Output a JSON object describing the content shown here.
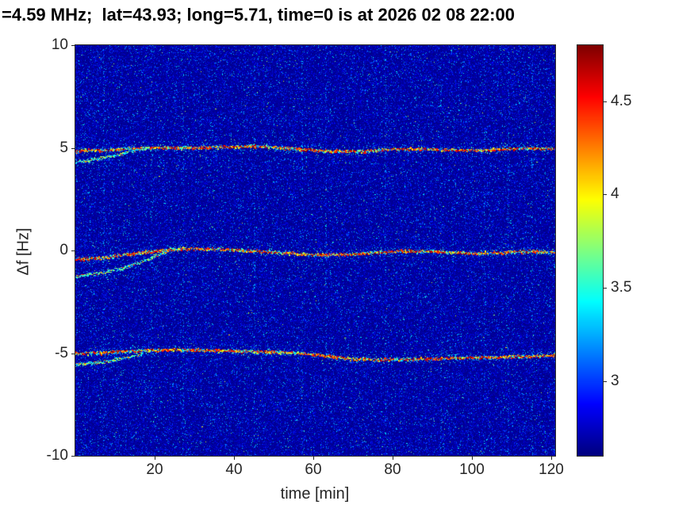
{
  "title": "=4.59 MHz;  lat=43.93; long=5.71, time=0 is at 2026 02 08 22:00",
  "axes": {
    "xlabel": "time [min]",
    "ylabel": "Δf [Hz]",
    "x_tick_labels": [
      "20",
      "40",
      "60",
      "80",
      "100",
      "120"
    ],
    "x_tick_values": [
      20,
      40,
      60,
      80,
      100,
      120
    ],
    "y_tick_labels": [
      "10",
      "5",
      "0",
      "-5",
      "-10"
    ],
    "y_tick_values": [
      10,
      5,
      0,
      -5,
      -10
    ],
    "xlim": [
      0,
      121
    ],
    "ylim": [
      -10,
      10
    ]
  },
  "colorbar": {
    "tick_labels": [
      "4.5",
      "4",
      "3.5",
      "3"
    ],
    "tick_values": [
      4.5,
      4,
      3.5,
      3
    ],
    "range": [
      2.6,
      4.8
    ],
    "colormap": "jet"
  },
  "chart_data": {
    "type": "heatmap",
    "title": "=4.59 MHz;  lat=43.93; long=5.71, time=0 is at 2026 02 08 22:00",
    "xlabel": "time [min]",
    "ylabel": "Δf [Hz]",
    "xlim": [
      0,
      121
    ],
    "ylim": [
      -10,
      10
    ],
    "clim": [
      2.6,
      4.8
    ],
    "colormap": "jet",
    "background_value": 2.65,
    "noise_ceiling": 3.6,
    "grid": false,
    "legend": false,
    "vertical_stripe_times": [
      7,
      19,
      27,
      45,
      57,
      63,
      78,
      92,
      103,
      109,
      115
    ],
    "traces": [
      {
        "name": "upper-doppler-main",
        "intensity": "strong",
        "points": [
          [
            0,
            4.85
          ],
          [
            8,
            4.92
          ],
          [
            16,
            5.0
          ],
          [
            26,
            5.02
          ],
          [
            36,
            5.05
          ],
          [
            44,
            5.1
          ],
          [
            50,
            5.05
          ],
          [
            57,
            4.95
          ],
          [
            64,
            4.85
          ],
          [
            72,
            4.85
          ],
          [
            80,
            4.95
          ],
          [
            88,
            4.97
          ],
          [
            96,
            4.9
          ],
          [
            104,
            4.92
          ],
          [
            112,
            5.0
          ],
          [
            121,
            4.97
          ]
        ]
      },
      {
        "name": "upper-doppler-secondary",
        "intensity": "weak",
        "points": [
          [
            0,
            4.3
          ],
          [
            5,
            4.45
          ],
          [
            10,
            4.65
          ],
          [
            15,
            4.88
          ],
          [
            18,
            5.0
          ]
        ]
      },
      {
        "name": "center-doppler-main",
        "intensity": "strong",
        "points": [
          [
            0,
            -0.4
          ],
          [
            6,
            -0.35
          ],
          [
            12,
            -0.2
          ],
          [
            20,
            0.0
          ],
          [
            28,
            0.1
          ],
          [
            36,
            0.08
          ],
          [
            44,
            0.0
          ],
          [
            52,
            -0.08
          ],
          [
            60,
            -0.2
          ],
          [
            68,
            -0.18
          ],
          [
            76,
            -0.08
          ],
          [
            84,
            0.0
          ],
          [
            92,
            -0.05
          ],
          [
            100,
            -0.12
          ],
          [
            108,
            -0.08
          ],
          [
            115,
            -0.02
          ],
          [
            121,
            -0.08
          ]
        ]
      },
      {
        "name": "center-doppler-secondary",
        "intensity": "weak",
        "points": [
          [
            0,
            -1.25
          ],
          [
            6,
            -1.1
          ],
          [
            12,
            -0.85
          ],
          [
            18,
            -0.45
          ],
          [
            23,
            -0.05
          ]
        ]
      },
      {
        "name": "lower-doppler-main",
        "intensity": "strong",
        "points": [
          [
            0,
            -5.0
          ],
          [
            8,
            -4.95
          ],
          [
            16,
            -4.85
          ],
          [
            24,
            -4.82
          ],
          [
            32,
            -4.84
          ],
          [
            40,
            -4.88
          ],
          [
            48,
            -4.92
          ],
          [
            56,
            -4.98
          ],
          [
            62,
            -5.08
          ],
          [
            68,
            -5.25
          ],
          [
            76,
            -5.3
          ],
          [
            84,
            -5.28
          ],
          [
            92,
            -5.25
          ],
          [
            100,
            -5.2
          ],
          [
            108,
            -5.17
          ],
          [
            115,
            -5.12
          ],
          [
            121,
            -5.1
          ]
        ]
      },
      {
        "name": "lower-doppler-secondary",
        "intensity": "weak",
        "points": [
          [
            0,
            -5.55
          ],
          [
            6,
            -5.45
          ],
          [
            12,
            -5.25
          ],
          [
            17,
            -5.02
          ]
        ]
      }
    ]
  }
}
